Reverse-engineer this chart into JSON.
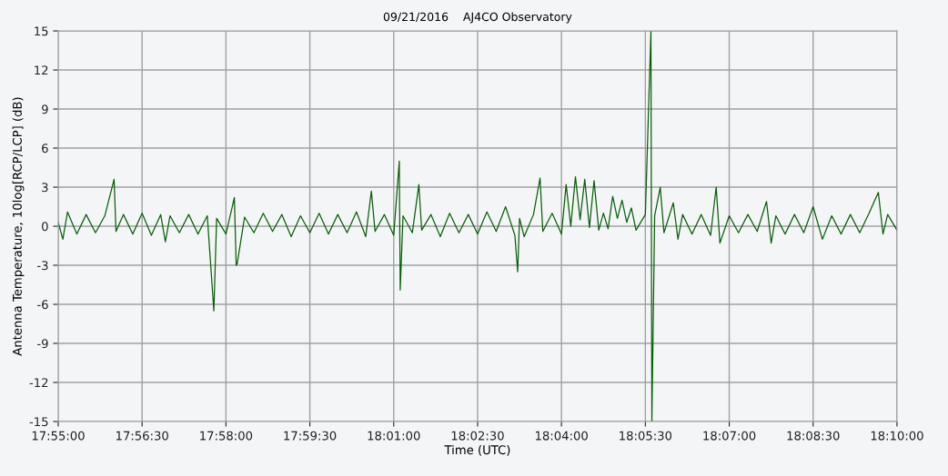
{
  "chart_data": {
    "type": "line",
    "title": "09/21/2016    AJ4CO Observatory",
    "xlabel": "Time (UTC)",
    "ylabel": "Antenna Temperature, 10log[RCP/LCP] (dB)",
    "xlim": [
      17.91667,
      18.16667
    ],
    "xticks": [
      {
        "value": 17.91667,
        "label": "17:55:00"
      },
      {
        "value": 17.94167,
        "label": "17:56:30"
      },
      {
        "value": 17.96667,
        "label": "17:58:00"
      },
      {
        "value": 17.99167,
        "label": "17:59:30"
      },
      {
        "value": 18.01667,
        "label": "18:01:00"
      },
      {
        "value": 18.04167,
        "label": "18:02:30"
      },
      {
        "value": 18.06667,
        "label": "18:04:00"
      },
      {
        "value": 18.09167,
        "label": "18:05:30"
      },
      {
        "value": 18.11667,
        "label": "18:07:00"
      },
      {
        "value": 18.14167,
        "label": "18:08:30"
      },
      {
        "value": 18.16667,
        "label": "18:10:00"
      }
    ],
    "ylim": [
      -15,
      15
    ],
    "yticks": [
      -15,
      -12,
      -9,
      -6,
      -3,
      0,
      3,
      6,
      9,
      12,
      15
    ],
    "grid": true,
    "marker": "none",
    "line_style": "solid",
    "series": [
      {
        "color": "#0b5e0b",
        "x": [
          17.91667,
          17.91806,
          17.91944,
          17.92222,
          17.925,
          17.92778,
          17.93056,
          17.93333,
          17.93389,
          17.93611,
          17.93889,
          17.94167,
          17.94444,
          17.94722,
          17.94861,
          17.95,
          17.95278,
          17.95556,
          17.95833,
          17.96111,
          17.96306,
          17.96389,
          17.96667,
          17.96917,
          17.96972,
          17.97,
          17.97222,
          17.975,
          17.97778,
          17.98056,
          17.98333,
          17.98611,
          17.98889,
          17.99167,
          17.99444,
          17.99722,
          18.0,
          18.00278,
          18.00556,
          18.00833,
          18.01,
          18.01111,
          18.01389,
          18.01667,
          18.01833,
          18.01861,
          18.01944,
          18.02222,
          18.02417,
          18.025,
          18.02778,
          18.03056,
          18.03333,
          18.03611,
          18.03889,
          18.04167,
          18.04444,
          18.04722,
          18.05,
          18.05278,
          18.05361,
          18.05417,
          18.05556,
          18.05833,
          18.06028,
          18.06111,
          18.06389,
          18.06667,
          18.06806,
          18.06944,
          18.07083,
          18.07222,
          18.07361,
          18.075,
          18.07639,
          18.07778,
          18.07917,
          18.08056,
          18.08194,
          18.08333,
          18.08472,
          18.08611,
          18.0875,
          18.08889,
          18.09167,
          18.09333,
          18.09361,
          18.09444,
          18.09611,
          18.09722,
          18.1,
          18.10139,
          18.10278,
          18.10556,
          18.10833,
          18.11111,
          18.11278,
          18.11389,
          18.11667,
          18.11944,
          18.12222,
          18.125,
          18.12778,
          18.12917,
          18.13056,
          18.13333,
          18.13611,
          18.13889,
          18.14167,
          18.14444,
          18.14722,
          18.15,
          18.15278,
          18.15556,
          18.15833,
          18.16111,
          18.1625,
          18.16389,
          18.16667
        ],
        "values": [
          0.3,
          -1.0,
          1.1,
          -0.6,
          0.9,
          -0.5,
          0.8,
          3.6,
          -0.4,
          0.9,
          -0.6,
          1.0,
          -0.7,
          0.9,
          -1.2,
          0.8,
          -0.5,
          0.9,
          -0.6,
          0.8,
          -6.5,
          0.6,
          -0.6,
          2.2,
          -3.0,
          -2.9,
          0.7,
          -0.5,
          1.0,
          -0.4,
          0.9,
          -0.8,
          0.8,
          -0.5,
          1.0,
          -0.6,
          0.9,
          -0.5,
          1.1,
          -0.8,
          2.7,
          -0.4,
          0.9,
          -0.7,
          5.0,
          -4.9,
          0.8,
          -0.5,
          3.2,
          -0.3,
          0.9,
          -0.8,
          1.0,
          -0.5,
          0.9,
          -0.6,
          1.1,
          -0.4,
          1.5,
          -0.7,
          -3.5,
          0.6,
          -0.8,
          0.9,
          3.7,
          -0.4,
          1.0,
          -0.6,
          3.2,
          0.0,
          3.8,
          0.5,
          3.6,
          -0.1,
          3.5,
          -0.3,
          1.0,
          -0.2,
          2.3,
          0.6,
          2.0,
          0.3,
          1.4,
          -0.3,
          0.9,
          15,
          -15,
          0.8,
          3.0,
          -0.5,
          1.8,
          -1.0,
          0.9,
          -0.6,
          0.9,
          -0.7,
          3.0,
          -1.3,
          0.8,
          -0.5,
          0.9,
          -0.4,
          1.9,
          -1.3,
          0.8,
          -0.6,
          0.9,
          -0.5,
          1.5,
          -1.0,
          0.8,
          -0.6,
          0.9,
          -0.5,
          1.0,
          2.6,
          -0.6,
          0.9,
          -0.3
        ]
      }
    ]
  }
}
